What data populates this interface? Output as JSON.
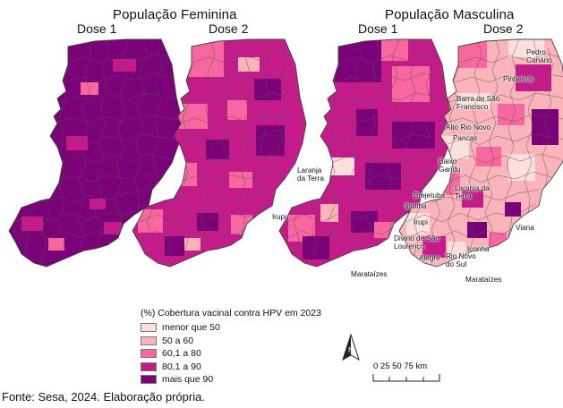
{
  "titles": {
    "female": "População Feminina",
    "male": "População Masculina"
  },
  "doses": {
    "female_dose1": "Dose 1",
    "female_dose2": "Dose 2",
    "male_dose1": "Dose 1",
    "male_dose2": "Dose 2"
  },
  "city_labels": {
    "laranja_da_terra_1": "Laranja\nda Terra",
    "irupi_1": "Irupi",
    "marataizes_1": "Marataízes",
    "pedro_canario": "Pedro\nCanário",
    "pinheiros": "Pinheiros",
    "barra_sao_francisco": "Barra de São\nFrancisco",
    "alto_rio_novo": "Alto Rio Novo",
    "pancas": "Pancas",
    "baixo_gandu": "Baixo\nGandu",
    "brejetuba": "Brejetuba",
    "laranja_da_terra_2": "Laranja da\nTerra",
    "ibatiba": "Ibatiba",
    "irupi_2": "Irupi",
    "divino_sao_lourenco": "Divino de São\nLourenço",
    "alegre": "Alegre",
    "iconha": "Iconha",
    "viana": "Viana",
    "rio_novo_do_sul": "Rio Novo\ndo Sul",
    "marataizes_2": "Marataízes"
  },
  "legend": {
    "title": "(%) Cobertura vacinal contra HPV em 2023",
    "items": [
      {
        "label": "menor que 50",
        "color": "#fde0dd"
      },
      {
        "label": "50 a 60",
        "color": "#fbb4b9"
      },
      {
        "label": "60,1 a 80",
        "color": "#f768a1"
      },
      {
        "label": "80,1 a 90",
        "color": "#c51b8a"
      },
      {
        "label": "mais que 90",
        "color": "#7a0177"
      }
    ]
  },
  "north_arrow": {
    "letter": "N"
  },
  "scalebar": {
    "ticks": "0    25    50    75 km"
  },
  "caption": "Fonte: Sesa, 2024. Elaboração própria."
}
